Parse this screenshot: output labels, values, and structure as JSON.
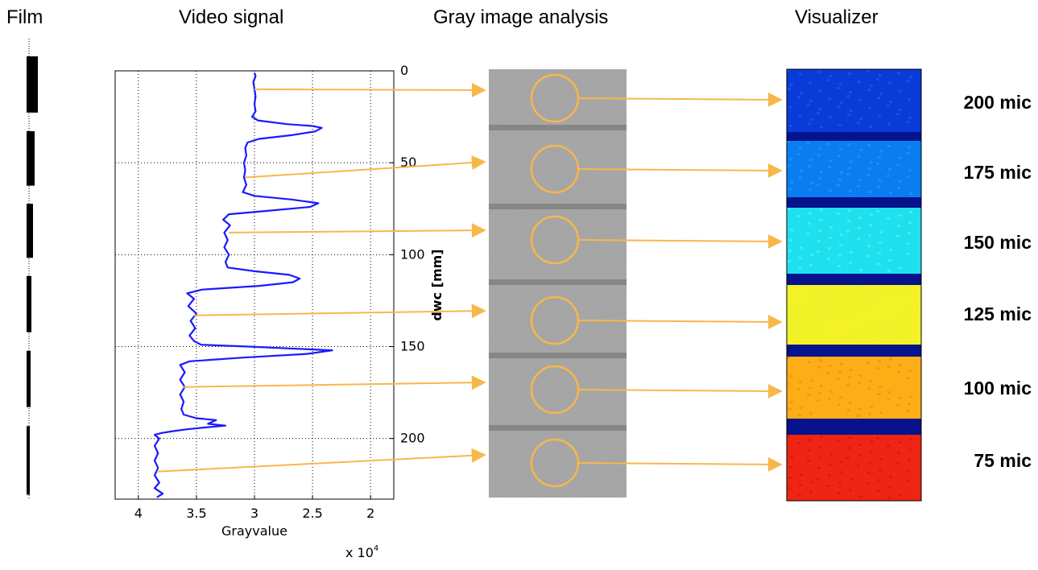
{
  "headers": {
    "film": "Film",
    "video_signal": "Video signal",
    "gray_image_analysis": "Gray image analysis",
    "visualizer": "Visualizer"
  },
  "colors": {
    "signal_line": "#1a1aff",
    "arrow": "#f8b74a",
    "circle": "#f8b74a",
    "gray_image": "#a9a9a9",
    "gray_stripe": "#7c7c7c"
  },
  "chart_data": {
    "type": "line",
    "orientation": "vertical",
    "xlabel": "Grayvalue",
    "x_multiplier": "x 10",
    "x_multiplier_exp": "4",
    "ylabel": "dwc [mm]",
    "xlim": [
      4.2,
      1.8
    ],
    "ylim": [
      0,
      233
    ],
    "x_reversed": true,
    "y_reversed": true,
    "x_ticks": [
      "4",
      "3.5",
      "3",
      "2.5",
      "2"
    ],
    "x_tick_values": [
      4,
      3.5,
      3,
      2.5,
      2
    ],
    "y_ticks": [
      "0",
      "50",
      "100",
      "150",
      "200"
    ],
    "y_tick_values": [
      0,
      50,
      100,
      150,
      200
    ],
    "grid": true,
    "series": [
      {
        "points": [
          [
            3.0,
            1
          ],
          [
            2.99,
            3
          ],
          [
            3.01,
            6
          ],
          [
            3.0,
            10
          ],
          [
            2.99,
            14
          ],
          [
            3.0,
            18
          ],
          [
            2.99,
            22
          ],
          [
            3.02,
            25
          ],
          [
            2.97,
            27
          ],
          [
            2.72,
            29
          ],
          [
            2.5,
            30
          ],
          [
            2.42,
            31
          ],
          [
            2.48,
            33
          ],
          [
            2.68,
            35
          ],
          [
            2.96,
            37
          ],
          [
            3.06,
            39
          ],
          [
            3.08,
            42
          ],
          [
            3.07,
            46
          ],
          [
            3.09,
            50
          ],
          [
            3.08,
            54
          ],
          [
            3.09,
            58
          ],
          [
            3.07,
            62
          ],
          [
            3.1,
            66
          ],
          [
            3.0,
            68
          ],
          [
            2.68,
            70
          ],
          [
            2.45,
            72
          ],
          [
            2.52,
            74
          ],
          [
            2.86,
            76
          ],
          [
            3.22,
            78
          ],
          [
            3.27,
            81
          ],
          [
            3.21,
            84
          ],
          [
            3.26,
            88
          ],
          [
            3.23,
            92
          ],
          [
            3.26,
            96
          ],
          [
            3.22,
            100
          ],
          [
            3.25,
            104
          ],
          [
            3.23,
            107
          ],
          [
            3.0,
            109
          ],
          [
            2.7,
            111
          ],
          [
            2.61,
            113
          ],
          [
            2.67,
            115
          ],
          [
            2.96,
            117
          ],
          [
            3.45,
            119
          ],
          [
            3.58,
            121
          ],
          [
            3.52,
            124
          ],
          [
            3.57,
            128
          ],
          [
            3.5,
            132
          ],
          [
            3.55,
            136
          ],
          [
            3.51,
            140
          ],
          [
            3.56,
            144
          ],
          [
            3.52,
            147
          ],
          [
            3.46,
            149
          ],
          [
            3.05,
            150
          ],
          [
            2.7,
            151
          ],
          [
            2.33,
            152
          ],
          [
            2.55,
            154
          ],
          [
            3.1,
            156
          ],
          [
            3.56,
            158
          ],
          [
            3.64,
            160
          ],
          [
            3.6,
            164
          ],
          [
            3.64,
            168
          ],
          [
            3.6,
            172
          ],
          [
            3.64,
            176
          ],
          [
            3.61,
            180
          ],
          [
            3.63,
            184
          ],
          [
            3.61,
            187
          ],
          [
            3.5,
            189
          ],
          [
            3.33,
            190
          ],
          [
            3.4,
            192
          ],
          [
            3.25,
            193
          ],
          [
            3.43,
            194
          ],
          [
            3.58,
            195
          ],
          [
            3.7,
            196
          ],
          [
            3.8,
            197
          ],
          [
            3.86,
            198
          ],
          [
            3.82,
            200
          ],
          [
            3.86,
            204
          ],
          [
            3.83,
            208
          ],
          [
            3.86,
            212
          ],
          [
            3.83,
            216
          ],
          [
            3.86,
            220
          ],
          [
            3.82,
            224
          ],
          [
            3.86,
            227
          ],
          [
            3.79,
            230
          ],
          [
            3.84,
            232
          ]
        ]
      }
    ]
  },
  "film_bars": [
    {
      "top": 0.0,
      "bottom": 0.127,
      "width": 14
    },
    {
      "top": 0.169,
      "bottom": 0.292,
      "width": 10
    },
    {
      "top": 0.333,
      "bottom": 0.455,
      "width": 8
    },
    {
      "top": 0.496,
      "bottom": 0.623,
      "width": 6
    },
    {
      "top": 0.665,
      "bottom": 0.792,
      "width": 5
    },
    {
      "top": 0.835,
      "bottom": 0.99,
      "width": 4
    }
  ],
  "visualizer": {
    "bands": [
      {
        "label": "200 mic",
        "color": "#0a3bd8",
        "alt": "#1e55e6"
      },
      {
        "label": "175 mic",
        "color": "#0a7ef0",
        "alt": "#2a92f5"
      },
      {
        "label": "150 mic",
        "color": "#1fe0ef",
        "alt": "#55efe6"
      },
      {
        "label": "125 mic",
        "color": "#f2f226",
        "alt": "#dcf23c"
      },
      {
        "label": "100 mic",
        "color": "#fcae16",
        "alt": "#f88d14"
      },
      {
        "label": "75 mic",
        "color": "#ef2414",
        "alt": "#d81410"
      }
    ],
    "separator_color": "#06138c"
  }
}
